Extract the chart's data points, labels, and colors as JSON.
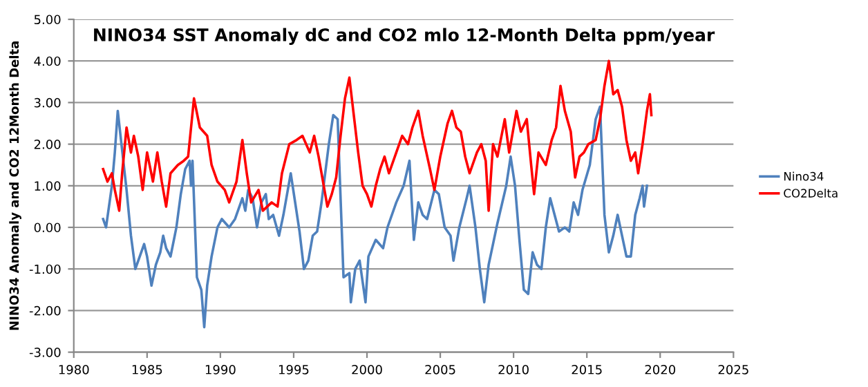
{
  "chart_data": {
    "type": "line",
    "title": "NINO34 SST Anomaly dC and CO2 mlo 12-Month Delta ppm/year",
    "ylabel": "NINO34 Anomaly and CO2 12Month Delta",
    "xlim": [
      1980,
      2025
    ],
    "xticks": [
      1980,
      1985,
      1990,
      1995,
      2000,
      2005,
      2010,
      2015,
      2020,
      2025
    ],
    "ylim": [
      -3,
      5
    ],
    "yticks": [
      {
        "value": -3,
        "label": "-3.00"
      },
      {
        "value": -2,
        "label": "-2.00"
      },
      {
        "value": -1,
        "label": "-1.00"
      },
      {
        "value": 0,
        "label": "0.00"
      },
      {
        "value": 1,
        "label": "1.00"
      },
      {
        "value": 2,
        "label": "2.00"
      },
      {
        "value": 3,
        "label": "3.00"
      },
      {
        "value": 4,
        "label": "4.00"
      },
      {
        "value": 5,
        "label": "5.00"
      }
    ],
    "grid": "y",
    "legend": "right",
    "marker": "none",
    "line_style": "solid",
    "series": [
      {
        "name": "Nino34",
        "color": "#4f81bd",
        "x": [
          1982.0,
          1982.2,
          1982.6,
          1982.8,
          1983.0,
          1983.6,
          1983.9,
          1984.2,
          1984.4,
          1984.8,
          1985.0,
          1985.3,
          1985.6,
          1985.9,
          1986.1,
          1986.3,
          1986.6,
          1987.0,
          1987.3,
          1987.6,
          1987.9,
          1988.0,
          1988.1,
          1988.4,
          1988.7,
          1988.9,
          1989.1,
          1989.4,
          1989.8,
          1990.1,
          1990.6,
          1991.0,
          1991.5,
          1991.7,
          1991.9,
          1992.2,
          1992.5,
          1992.8,
          1993.1,
          1993.3,
          1993.6,
          1994.0,
          1994.3,
          1994.8,
          1995.1,
          1995.4,
          1995.7,
          1996.0,
          1996.3,
          1996.6,
          1996.9,
          1997.4,
          1997.7,
          1998.0,
          1998.4,
          1998.8,
          1998.9,
          1999.2,
          1999.5,
          1999.9,
          2000.1,
          2000.6,
          2001.1,
          2001.4,
          2002.0,
          2002.5,
          2002.9,
          2003.2,
          2003.5,
          2003.8,
          2004.1,
          2004.6,
          2004.9,
          2005.3,
          2005.7,
          2005.9,
          2006.3,
          2006.8,
          2007.0,
          2007.4,
          2007.7,
          2008.0,
          2008.3,
          2008.6,
          2008.9,
          2009.5,
          2009.8,
          2010.1,
          2010.4,
          2010.7,
          2011.0,
          2011.3,
          2011.6,
          2011.9,
          2012.2,
          2012.5,
          2012.8,
          2013.1,
          2013.5,
          2013.8,
          2014.1,
          2014.4,
          2014.7,
          2015.2,
          2015.6,
          2015.9,
          2016.2,
          2016.5,
          2016.8,
          2017.1,
          2017.4,
          2017.7,
          2018.0,
          2018.3,
          2018.6,
          2018.8,
          2018.9,
          2019.1
        ],
        "values": [
          0.2,
          0.0,
          1.0,
          1.8,
          2.8,
          0.9,
          -0.2,
          -1.0,
          -0.8,
          -0.4,
          -0.7,
          -1.4,
          -0.9,
          -0.6,
          -0.2,
          -0.5,
          -0.7,
          0.0,
          0.8,
          1.4,
          1.6,
          1.0,
          1.6,
          -1.2,
          -1.5,
          -2.4,
          -1.4,
          -0.7,
          0.0,
          0.2,
          0.0,
          0.2,
          0.7,
          0.4,
          0.9,
          0.7,
          0.0,
          0.6,
          0.8,
          0.2,
          0.3,
          -0.2,
          0.3,
          1.3,
          0.6,
          -0.1,
          -1.0,
          -0.8,
          -0.2,
          -0.1,
          0.6,
          2.0,
          2.7,
          2.6,
          -1.2,
          -1.1,
          -1.8,
          -1.0,
          -0.8,
          -1.8,
          -0.7,
          -0.3,
          -0.5,
          0.0,
          0.6,
          1.0,
          1.6,
          -0.3,
          0.6,
          0.3,
          0.2,
          0.9,
          0.8,
          0.0,
          -0.2,
          -0.8,
          0.0,
          0.7,
          1.0,
          0.0,
          -1.0,
          -1.8,
          -0.9,
          -0.4,
          0.1,
          1.0,
          1.7,
          1.0,
          -0.3,
          -1.5,
          -1.6,
          -0.6,
          -0.9,
          -1.0,
          0.0,
          0.7,
          0.3,
          -0.1,
          0.0,
          -0.1,
          0.6,
          0.3,
          0.9,
          1.5,
          2.6,
          2.9,
          0.3,
          -0.6,
          -0.2,
          0.3,
          -0.2,
          -0.7,
          -0.7,
          0.3,
          0.7,
          1.0,
          0.5,
          1.0
        ]
      },
      {
        "name": "CO2Delta",
        "color": "#ff0000",
        "x": [
          1982.0,
          1982.3,
          1982.6,
          1982.8,
          1983.1,
          1983.3,
          1983.6,
          1983.9,
          1984.1,
          1984.4,
          1984.7,
          1985.0,
          1985.4,
          1985.7,
          1986.0,
          1986.3,
          1986.6,
          1987.1,
          1987.5,
          1987.8,
          1988.2,
          1988.6,
          1989.1,
          1989.4,
          1989.8,
          1990.3,
          1990.6,
          1991.1,
          1991.5,
          1991.8,
          1992.1,
          1992.6,
          1992.9,
          1993.2,
          1993.5,
          1993.9,
          1994.2,
          1994.7,
          1995.2,
          1995.6,
          1996.1,
          1996.4,
          1996.7,
          1997.0,
          1997.3,
          1997.6,
          1997.9,
          1998.2,
          1998.5,
          1998.8,
          1999.1,
          1999.4,
          1999.7,
          2000.0,
          2000.3,
          2000.6,
          2000.9,
          2001.2,
          2001.5,
          2002.0,
          2002.4,
          2002.8,
          2003.1,
          2003.5,
          2003.8,
          2004.3,
          2004.6,
          2005.0,
          2005.5,
          2005.8,
          2006.1,
          2006.4,
          2006.7,
          2007.0,
          2007.5,
          2007.8,
          2008.1,
          2008.3,
          2008.6,
          2008.9,
          2009.4,
          2009.7,
          2010.2,
          2010.5,
          2010.9,
          2011.2,
          2011.4,
          2011.7,
          2012.2,
          2012.6,
          2012.9,
          2013.2,
          2013.5,
          2013.9,
          2014.2,
          2014.5,
          2014.8,
          2015.1,
          2015.6,
          2015.9,
          2016.2,
          2016.5,
          2016.8,
          2017.1,
          2017.4,
          2017.7,
          2018.0,
          2018.3,
          2018.5,
          2018.8,
          2019.1,
          2019.3,
          2019.4
        ],
        "values": [
          1.4,
          1.1,
          1.3,
          0.9,
          0.4,
          1.3,
          2.4,
          1.8,
          2.2,
          1.7,
          0.9,
          1.8,
          1.1,
          1.8,
          1.1,
          0.5,
          1.3,
          1.5,
          1.6,
          1.7,
          3.1,
          2.4,
          2.2,
          1.5,
          1.1,
          0.9,
          0.6,
          1.1,
          2.1,
          1.3,
          0.6,
          0.9,
          0.4,
          0.5,
          0.6,
          0.5,
          1.3,
          2.0,
          2.1,
          2.2,
          1.8,
          2.2,
          1.7,
          1.1,
          0.5,
          0.8,
          1.2,
          2.2,
          3.1,
          3.6,
          2.7,
          1.8,
          1.0,
          0.8,
          0.5,
          1.0,
          1.4,
          1.7,
          1.3,
          1.8,
          2.2,
          2.0,
          2.4,
          2.8,
          2.2,
          1.4,
          0.9,
          1.7,
          2.5,
          2.8,
          2.4,
          2.3,
          1.7,
          1.3,
          1.8,
          2.0,
          1.6,
          0.4,
          2.0,
          1.7,
          2.6,
          1.8,
          2.8,
          2.3,
          2.6,
          1.5,
          0.8,
          1.8,
          1.5,
          2.1,
          2.4,
          3.4,
          2.8,
          2.3,
          1.2,
          1.7,
          1.8,
          2.0,
          2.1,
          2.6,
          3.4,
          4.0,
          3.2,
          3.3,
          2.9,
          2.1,
          1.6,
          1.8,
          1.3,
          2.0,
          2.8,
          3.2,
          2.7
        ]
      }
    ]
  }
}
